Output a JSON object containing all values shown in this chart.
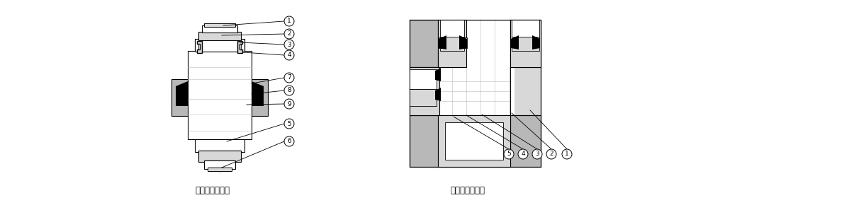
{
  "background_color": "#ffffff",
  "line_color": "#000000",
  "gray_fill": "#b8b8b8",
  "light_gray": "#d8d8d8",
  "mid_gray": "#a0a0a0",
  "label_left": "ハーフユニオン",
  "label_right": "エルボユニオン",
  "figsize": [
    11.98,
    2.9
  ],
  "dpi": 100
}
